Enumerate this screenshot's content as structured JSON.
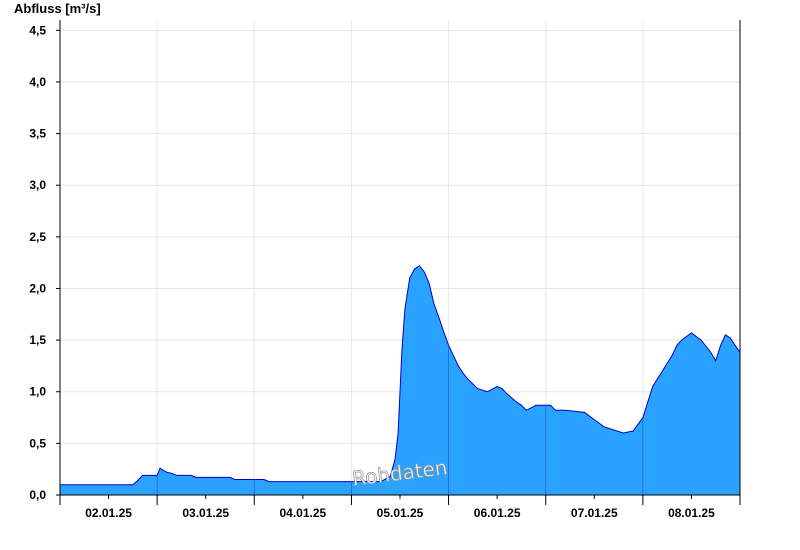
{
  "chart_data": {
    "type": "area",
    "ylabel": "Abfluss [m³/s]",
    "ylim": [
      0,
      4.6
    ],
    "yticks": [
      0,
      0.5,
      1.0,
      1.5,
      2.0,
      2.5,
      3.0,
      3.5,
      4.0,
      4.5
    ],
    "ytick_labels": [
      "0,0",
      "0,5",
      "1,0",
      "1,5",
      "2,0",
      "2,5",
      "3,0",
      "3,5",
      "4,0",
      "4,5"
    ],
    "x_unit": "days since 2025-01-01 12:00",
    "xlim": [
      0,
      7
    ],
    "xticks": [
      0.5,
      1.5,
      2.5,
      3.5,
      4.5,
      5.5,
      6.5
    ],
    "xtick_labels": [
      "02.01.25",
      "03.01.25",
      "04.01.25",
      "05.01.25",
      "06.01.25",
      "07.01.25",
      "08.01.25"
    ],
    "grid": true,
    "fill_color": "#29a3ff",
    "line_color": "#0000cc",
    "watermark": "Rohdaten",
    "series": [
      {
        "x": [
          0,
          0.75,
          0.8,
          0.85,
          0.95,
          1.0,
          1.03,
          1.06,
          1.1,
          1.15,
          1.2,
          1.35,
          1.4,
          1.75,
          1.8,
          2.1,
          2.15,
          3.3,
          3.4,
          3.45,
          3.48,
          3.5,
          3.52,
          3.55,
          3.6,
          3.65,
          3.7,
          3.75,
          3.8,
          3.85,
          3.9,
          3.95,
          4.0,
          4.05,
          4.1,
          4.15,
          4.2,
          4.3,
          4.4,
          4.5,
          4.55,
          4.6,
          4.7,
          4.75,
          4.8,
          4.9,
          5.0,
          5.05,
          5.1,
          5.15,
          5.2,
          5.4,
          5.5,
          5.6,
          5.8,
          5.9,
          6.0,
          6.1,
          6.2,
          6.3,
          6.35,
          6.4,
          6.5,
          6.6,
          6.7,
          6.75,
          6.8,
          6.85,
          6.9,
          6.95,
          7.0
        ],
        "y": [
          0.1,
          0.1,
          0.14,
          0.19,
          0.19,
          0.19,
          0.26,
          0.24,
          0.22,
          0.21,
          0.19,
          0.19,
          0.17,
          0.17,
          0.15,
          0.15,
          0.13,
          0.13,
          0.18,
          0.35,
          0.6,
          1.0,
          1.4,
          1.8,
          2.1,
          2.19,
          2.22,
          2.16,
          2.05,
          1.85,
          1.72,
          1.58,
          1.45,
          1.35,
          1.25,
          1.18,
          1.12,
          1.03,
          1.0,
          1.05,
          1.03,
          0.98,
          0.9,
          0.87,
          0.82,
          0.87,
          0.87,
          0.87,
          0.82,
          0.82,
          0.82,
          0.8,
          0.73,
          0.66,
          0.6,
          0.62,
          0.75,
          1.05,
          1.2,
          1.35,
          1.45,
          1.5,
          1.57,
          1.5,
          1.38,
          1.3,
          1.45,
          1.55,
          1.52,
          1.45,
          1.38
        ]
      }
    ]
  }
}
